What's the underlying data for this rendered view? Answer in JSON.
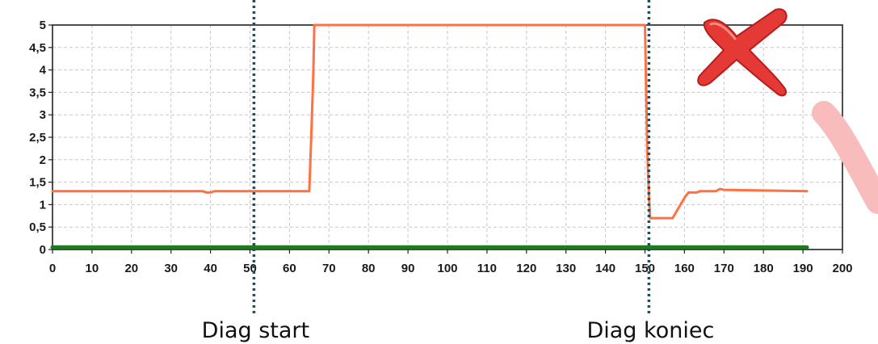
{
  "chart_data": {
    "type": "line",
    "title": "",
    "xlabel": "",
    "ylabel": "",
    "xlim": [
      0,
      200
    ],
    "ylim": [
      0,
      5
    ],
    "x_ticks": [
      0,
      10,
      20,
      30,
      40,
      50,
      60,
      70,
      80,
      90,
      100,
      110,
      120,
      130,
      140,
      150,
      160,
      170,
      180,
      190,
      200
    ],
    "y_ticks": [
      0,
      0.5,
      1,
      1.5,
      2,
      2.5,
      3,
      3.5,
      4,
      4.5,
      5
    ],
    "y_tick_labels": [
      "0",
      "0,5",
      "1",
      "1,5",
      "2",
      "2,5",
      "3",
      "3,5",
      "4",
      "4,5",
      "5"
    ],
    "grid": true,
    "series": [
      {
        "color": "#ff7043",
        "x": [
          0,
          38,
          39,
          40,
          41,
          65,
          65.5,
          66,
          66.3,
          150,
          150.3,
          150.6,
          151,
          151.3,
          157,
          159,
          160,
          161,
          163,
          164,
          168,
          169,
          170,
          191
        ],
        "y": [
          1.3,
          1.3,
          1.27,
          1.27,
          1.3,
          1.3,
          2.5,
          3.8,
          5,
          5,
          3.5,
          2.2,
          1.2,
          0.7,
          0.7,
          1.0,
          1.15,
          1.27,
          1.27,
          1.3,
          1.3,
          1.35,
          1.33,
          1.3
        ]
      },
      {
        "color": "#1e7b1e",
        "x": [
          0,
          191
        ],
        "y": [
          0.05,
          0.05
        ]
      }
    ],
    "markers": [
      {
        "x": 51,
        "label": "Diag start",
        "color": "#1f4e5f"
      },
      {
        "x": 151,
        "label": "Diag koniec",
        "color": "#1f4e5f"
      }
    ]
  }
}
